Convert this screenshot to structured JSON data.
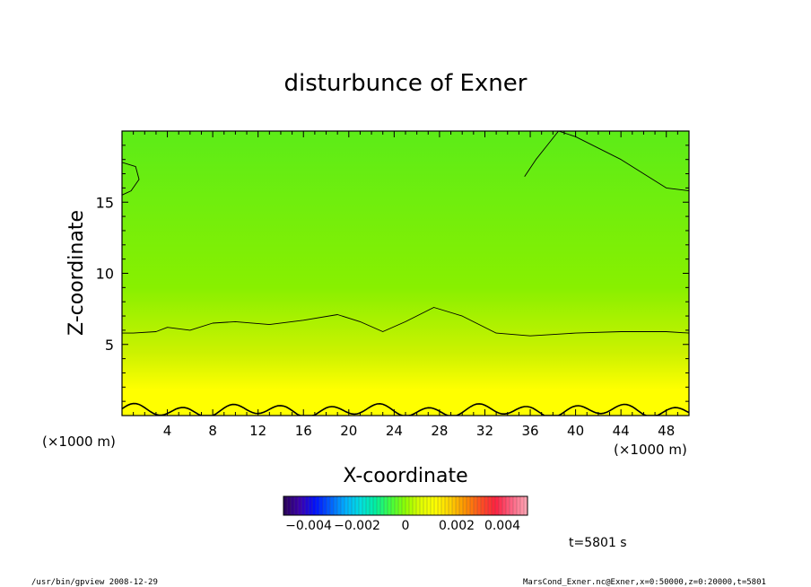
{
  "chart_data": {
    "type": "heatmap",
    "title": "disturbunce of Exner",
    "xlabel": "X-coordinate",
    "ylabel": "Z-coordinate",
    "x_unit": "(×1000 m)",
    "y_unit": "(×1000 m)",
    "xlim": [
      0,
      50
    ],
    "ylim": [
      0,
      20
    ],
    "x_ticks": [
      "4",
      "8",
      "12",
      "16",
      "20",
      "24",
      "28",
      "32",
      "36",
      "40",
      "44",
      "48"
    ],
    "x_tick_values": [
      4,
      8,
      12,
      16,
      20,
      24,
      28,
      32,
      36,
      40,
      44,
      48
    ],
    "y_ticks": [
      "5",
      "10",
      "15"
    ],
    "y_tick_values": [
      5,
      10,
      15
    ],
    "colorbar": {
      "labels": [
        "−0.004",
        "−0.002",
        "0",
        "0.002",
        "0.004"
      ],
      "min": -0.005,
      "max": 0.005,
      "colors": [
        "#2a0060",
        "#3b00b0",
        "#0010ff",
        "#0060ff",
        "#00b0ff",
        "#00e0e0",
        "#00f0a0",
        "#40ff40",
        "#90ff00",
        "#e0ff00",
        "#ffff00",
        "#ffd000",
        "#ff9000",
        "#ff5020",
        "#ff2040",
        "#ff6080",
        "#ffa0b0"
      ]
    },
    "field_colors": {
      "lower": "#ffff00",
      "lower_mid": "#ccf200",
      "mid": "#88f000",
      "upper": "#5cec18"
    },
    "contours": [
      {
        "level": "near-zero",
        "x": [
          0,
          1,
          3,
          4,
          6,
          8,
          10,
          13,
          16,
          19,
          21,
          23,
          25,
          27.5,
          30,
          33,
          36,
          40,
          44,
          48,
          50
        ],
        "z": [
          5.8,
          5.8,
          5.9,
          6.2,
          6.0,
          6.5,
          6.6,
          6.4,
          6.7,
          7.1,
          6.6,
          5.9,
          6.6,
          7.6,
          7.0,
          5.8,
          5.6,
          5.8,
          5.9,
          5.9,
          5.8
        ]
      },
      {
        "level": "near-zero",
        "x": [
          35.5,
          36.5,
          37.5,
          38.5,
          40,
          44,
          48,
          50
        ],
        "z": [
          16.8,
          18.0,
          19.0,
          20.0,
          19.6,
          18.0,
          16.0,
          15.8
        ]
      },
      {
        "level": "near-zero",
        "x": [
          0,
          1.2,
          1.5,
          0.8,
          0
        ],
        "z": [
          17.8,
          17.5,
          16.6,
          15.8,
          15.5
        ]
      }
    ],
    "time_label": "t=5801 s",
    "footer_left": "/usr/bin/gpview  2008-12-29",
    "footer_right": "MarsCond_Exner.nc@Exner,x=0:50000,z=0:20000,t=5801"
  }
}
